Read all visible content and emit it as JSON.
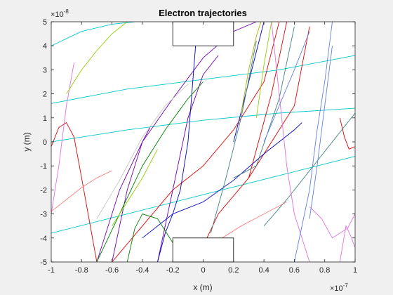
{
  "chart_data": {
    "type": "line",
    "title": "Electron trajectories",
    "xlabel": "x (m)",
    "ylabel": "y (m)",
    "x_exponent_label": "×10",
    "x_exponent": "-7",
    "y_exponent_label": "×10",
    "y_exponent": "-8",
    "xlim": [
      -1,
      1
    ],
    "ylim": [
      -5,
      5
    ],
    "x_ticks": [
      -1,
      -0.8,
      -0.6,
      -0.4,
      -0.2,
      0,
      0.2,
      0.4,
      0.6,
      0.8,
      1
    ],
    "x_tick_labels": [
      "-1",
      "-0.8",
      "-0.6",
      "-0.4",
      "-0.2",
      "0",
      "0.2",
      "0.4",
      "0.6",
      "0.8",
      "1"
    ],
    "y_ticks": [
      -5,
      -4,
      -3,
      -2,
      -1,
      0,
      1,
      2,
      3,
      4,
      5
    ],
    "y_tick_labels": [
      "-5",
      "-4",
      "-3",
      "-2",
      "-1",
      "0",
      "1",
      "2",
      "3",
      "4",
      "5"
    ],
    "grid": false,
    "obstacles": [
      {
        "x": [
          -0.2,
          0.2
        ],
        "y": [
          4,
          5
        ]
      },
      {
        "x": [
          -0.2,
          0.2
        ],
        "y": [
          -5,
          -4
        ]
      }
    ],
    "series": [
      {
        "color": "#00c8c8",
        "x": [
          -1,
          -0.5,
          0,
          0.5,
          1
        ],
        "y": [
          1.6,
          2.2,
          2.6,
          3,
          3.6
        ]
      },
      {
        "color": "#00c8c8",
        "x": [
          -1,
          -0.5,
          0,
          0.5,
          1
        ],
        "y": [
          0,
          0.5,
          0.9,
          1.2,
          1.4
        ]
      },
      {
        "color": "#00c8c8",
        "x": [
          -1,
          -0.5,
          0,
          0.5,
          1
        ],
        "y": [
          -3.8,
          -3.0,
          -2.2,
          -1.4,
          -0.6
        ]
      },
      {
        "color": "#00c8c8",
        "x": [
          -1,
          -0.8,
          -0.6,
          -0.45
        ],
        "y": [
          4.0,
          4.6,
          4.9,
          5
        ]
      },
      {
        "color": "#e00000",
        "x": [
          -1,
          -0.95,
          -0.9,
          -0.85,
          -0.8,
          -0.7
        ],
        "y": [
          -0.2,
          0.6,
          0.8,
          0.2,
          -1.5,
          -5
        ]
      },
      {
        "color": "#e00000",
        "x": [
          -0.6,
          -0.4,
          -0.2,
          0,
          0.2,
          0.4,
          0.5
        ],
        "y": [
          -5,
          -3.5,
          -2,
          -1,
          0.5,
          2.5,
          5
        ]
      },
      {
        "color": "#e00000",
        "x": [
          0.3,
          0.4,
          0.5,
          0.6,
          0.7
        ],
        "y": [
          -1.5,
          -0.5,
          0.5,
          1.5,
          4.8
        ]
      },
      {
        "color": "#e00000",
        "x": [
          0.9,
          0.93,
          0.96,
          1
        ],
        "y": [
          1,
          0.2,
          -0.3,
          -0.2
        ]
      },
      {
        "color": "#e00000",
        "x": [
          -0.05,
          0.1,
          0.3,
          0.45,
          0.55
        ],
        "y": [
          -5,
          -3,
          -1.5,
          2,
          5
        ]
      },
      {
        "color": "#7000b0",
        "x": [
          -0.7,
          -0.55,
          -0.4,
          -0.2,
          0,
          0.2,
          0.35
        ],
        "y": [
          -5,
          -2,
          0,
          1.8,
          3.5,
          4.6,
          5
        ]
      },
      {
        "color": "#7000b0",
        "x": [
          -0.3,
          -0.2,
          -0.1,
          0,
          0.1
        ],
        "y": [
          -5,
          -2,
          1,
          2.8,
          3.6
        ]
      },
      {
        "color": "#7000b0",
        "x": [
          -0.6,
          -0.5,
          -0.4,
          -0.35
        ],
        "y": [
          -5,
          -2,
          0,
          0.6
        ]
      },
      {
        "color": "#0000c8",
        "x": [
          -0.4,
          -0.2,
          0,
          0.2,
          0.4,
          0.6,
          0.65
        ],
        "y": [
          -4,
          -3,
          -2.5,
          -1.6,
          -0.5,
          0.5,
          0.8
        ]
      },
      {
        "color": "#0000c8",
        "x": [
          -0.3,
          -0.25,
          -0.2,
          -0.15,
          -0.1,
          -0.05
        ],
        "y": [
          -5,
          -3.8,
          -3,
          -2,
          0,
          4
        ]
      },
      {
        "color": "#0000c8",
        "x": [
          0.2,
          0.3,
          0.4
        ],
        "y": [
          0,
          2.5,
          5
        ]
      },
      {
        "color": "#008000",
        "x": [
          -0.7,
          -0.55,
          -0.4,
          -0.25,
          -0.1,
          0
        ],
        "y": [
          -5,
          -3,
          -1,
          0.5,
          1.8,
          2.5
        ]
      },
      {
        "color": "#008000",
        "x": [
          -0.5,
          -0.45,
          -0.4,
          -0.3,
          -0.2
        ],
        "y": [
          -5,
          -3.6,
          -3,
          -3.2,
          -4.2
        ]
      },
      {
        "color": "#408080",
        "x": [
          0.2,
          0.35,
          0.5,
          0.6
        ],
        "y": [
          -1.5,
          -1,
          1.8,
          4.8
        ]
      },
      {
        "color": "#408080",
        "x": [
          0.4,
          0.55,
          0.7,
          0.85,
          1
        ],
        "y": [
          -3.5,
          -2.4,
          -1.2,
          0,
          1.2
        ]
      },
      {
        "color": "#408080",
        "x": [
          0.05,
          0.15,
          0.25,
          0.35
        ],
        "y": [
          -3.8,
          -1.5,
          1,
          4.2
        ]
      },
      {
        "color": "#e070e0",
        "x": [
          -1,
          -0.95,
          -0.9,
          -0.85
        ],
        "y": [
          -3,
          -1,
          1.5,
          3.3
        ]
      },
      {
        "color": "#e070e0",
        "x": [
          0.45,
          0.5,
          0.55,
          0.6,
          0.65,
          0.7
        ],
        "y": [
          5,
          2,
          -1,
          -3,
          -4,
          -5
        ]
      },
      {
        "color": "#e070e0",
        "x": [
          0.7,
          0.78,
          0.85,
          0.95,
          1
        ],
        "y": [
          -2.7,
          -3.2,
          -4,
          -3.6,
          -3
        ]
      },
      {
        "color": "#e070e0",
        "x": [
          0.9,
          0.94,
          0.97,
          1
        ],
        "y": [
          -5,
          -3.5,
          -3.9,
          -4.4
        ]
      },
      {
        "color": "#ff8080",
        "x": [
          -1,
          -0.9,
          -0.8,
          -0.7,
          -0.6
        ],
        "y": [
          -2.9,
          -2.4,
          -1.9,
          -1.5,
          -1.2
        ]
      },
      {
        "color": "#ff8080",
        "x": [
          -0.2,
          -0.05,
          0.1,
          0.25,
          0.4,
          0.55
        ],
        "y": [
          -5,
          -4.6,
          -4.1,
          -3.5,
          -3,
          -2.5
        ]
      },
      {
        "color": "#90d000",
        "x": [
          -0.9,
          -0.8,
          -0.7,
          -0.6,
          -0.5
        ],
        "y": [
          2,
          3,
          3.8,
          4.5,
          5
        ]
      },
      {
        "color": "#90d000",
        "x": [
          -0.6,
          -0.5,
          -0.4,
          -0.3
        ],
        "y": [
          -3.5,
          -2.5,
          -1.5,
          -0.3
        ]
      },
      {
        "color": "#90d000",
        "x": [
          0.35,
          0.4,
          0.45
        ],
        "y": [
          1,
          3.2,
          5
        ]
      },
      {
        "color": "#6080e0",
        "x": [
          0.6,
          0.7,
          0.75,
          0.8,
          0.85
        ],
        "y": [
          -5,
          -2,
          0.5,
          2.5,
          5
        ]
      },
      {
        "color": "#6080e0",
        "x": [
          0.4,
          0.5,
          0.6,
          0.7
        ],
        "y": [
          0,
          1.5,
          3,
          4.6
        ]
      },
      {
        "color": "#6080e0",
        "x": [
          0.7,
          0.75,
          0.8,
          0.85
        ],
        "y": [
          -3.2,
          -1,
          1.5,
          4
        ]
      },
      {
        "color": "#b0b000",
        "x": [
          0.25,
          0.3,
          0.35,
          0.38
        ],
        "y": [
          1.2,
          3,
          4.4,
          5
        ]
      },
      {
        "color": "#c8c8c8",
        "x": [
          -0.7,
          -0.55,
          -0.4,
          -0.25,
          -0.1
        ],
        "y": [
          -3.2,
          -1.6,
          0.2,
          1.5,
          2.4
        ]
      }
    ]
  }
}
